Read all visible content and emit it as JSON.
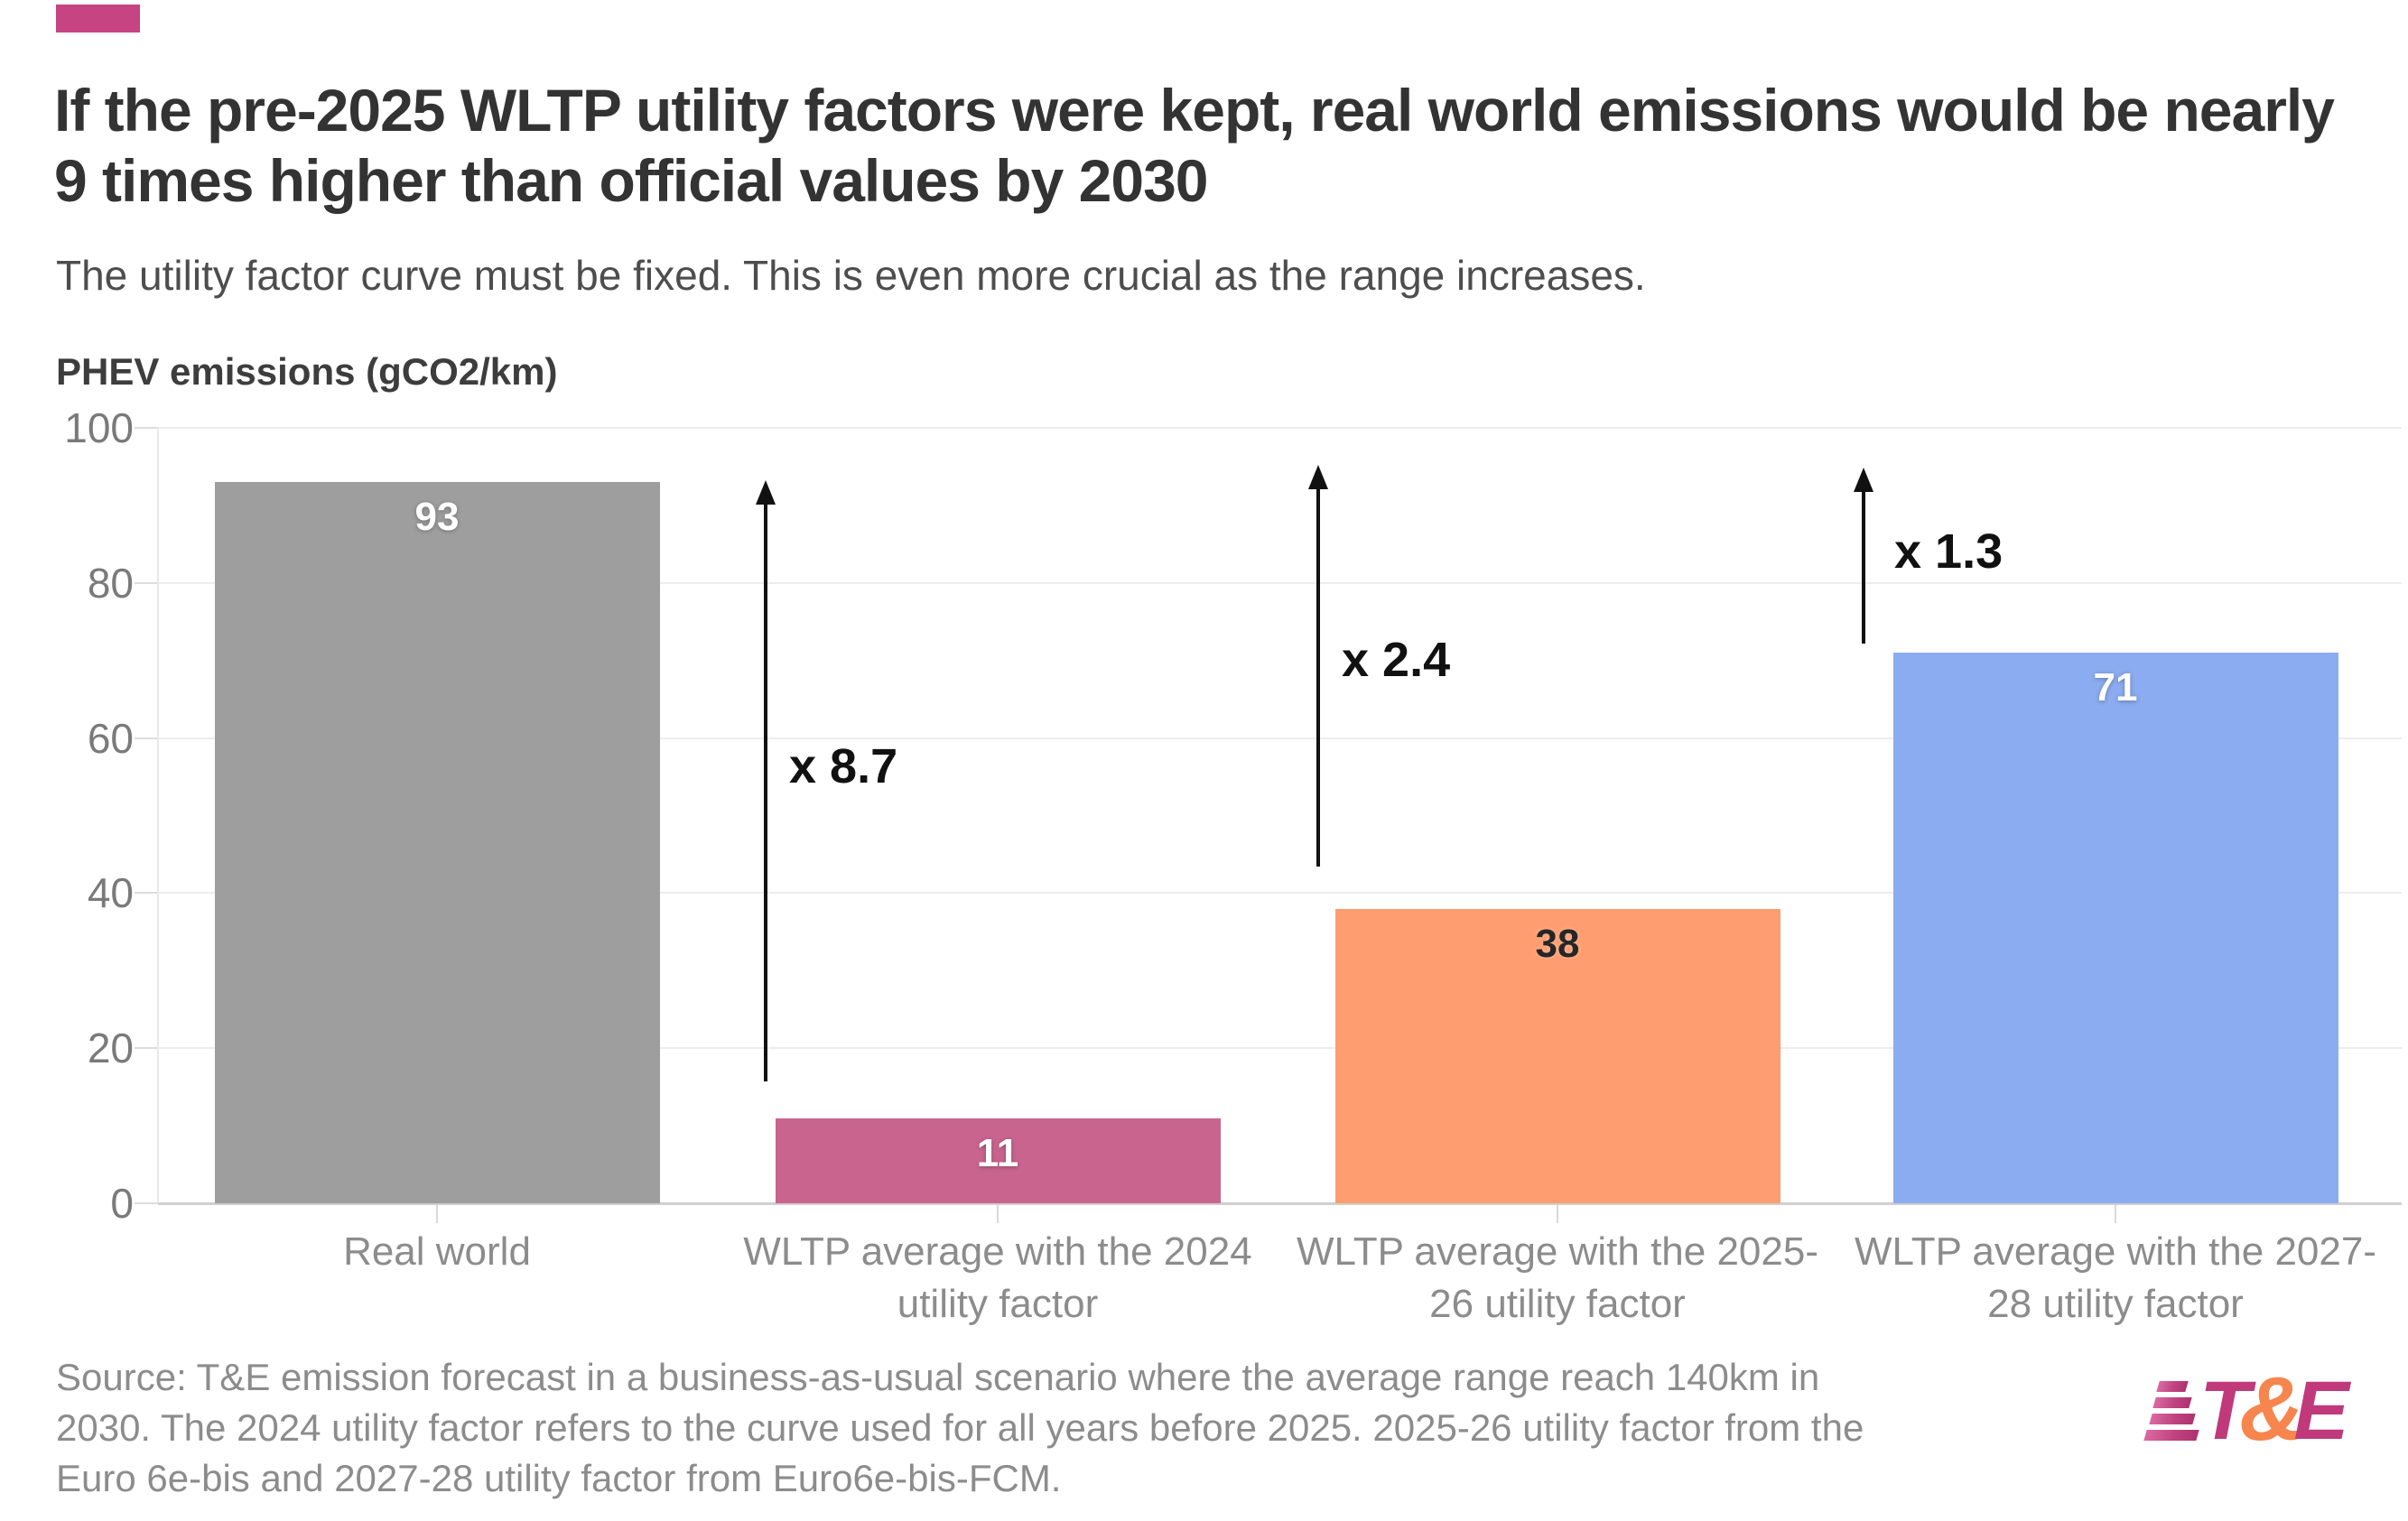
{
  "header": {
    "badge_color": "#C64482",
    "title": "If the pre-2025 WLTP utility factors were kept, real world emissions would be nearly 9 times higher than official values by 2030",
    "subtitle": "The utility factor curve must be fixed. This is even more crucial as the range increases."
  },
  "chart_data": {
    "type": "bar",
    "title": "If the pre-2025 WLTP utility factors were kept, real world emissions would be nearly 9 times higher than official values by 2030",
    "subtitle": "The utility factor curve must be fixed. This is even more crucial as the range increases.",
    "ylabel": "PHEV emissions (gCO2/km)",
    "xlabel": "",
    "categories": [
      "Real world",
      "WLTP average with the 2024 utility factor",
      "WLTP average with the 2025-26 utility factor",
      "WLTP average with the 2027-28 utility factor"
    ],
    "values": [
      93,
      11,
      38,
      71
    ],
    "bar_colors": [
      "#9E9E9E",
      "#C9648F",
      "#FD9D70",
      "#8BACF0"
    ],
    "value_label_styles": [
      "light",
      "light",
      "dark",
      "light"
    ],
    "ylim": [
      0,
      100
    ],
    "yticks": [
      0,
      20,
      40,
      60,
      80,
      100
    ],
    "grid": true,
    "legend": "none",
    "annotations": [
      {
        "label": "x 8.7"
      },
      {
        "label": "x 2.4"
      },
      {
        "label": "x 1.3"
      }
    ]
  },
  "footer": {
    "source_lines": [
      "Source: T&E emission forecast in a business-as-usual scenario where the average range reach 140km in",
      "2030. The 2024 utility factor refers to the curve used for all years before 2025. 2025-26 utility factor from the",
      "Euro 6e-bis and 2027-28 utility factor from Euro6e-bis-FCM."
    ],
    "logo": {
      "t": "T",
      "amp": "&",
      "e": "E",
      "magenta": "#C0397B",
      "orange": "#F6854E"
    }
  }
}
